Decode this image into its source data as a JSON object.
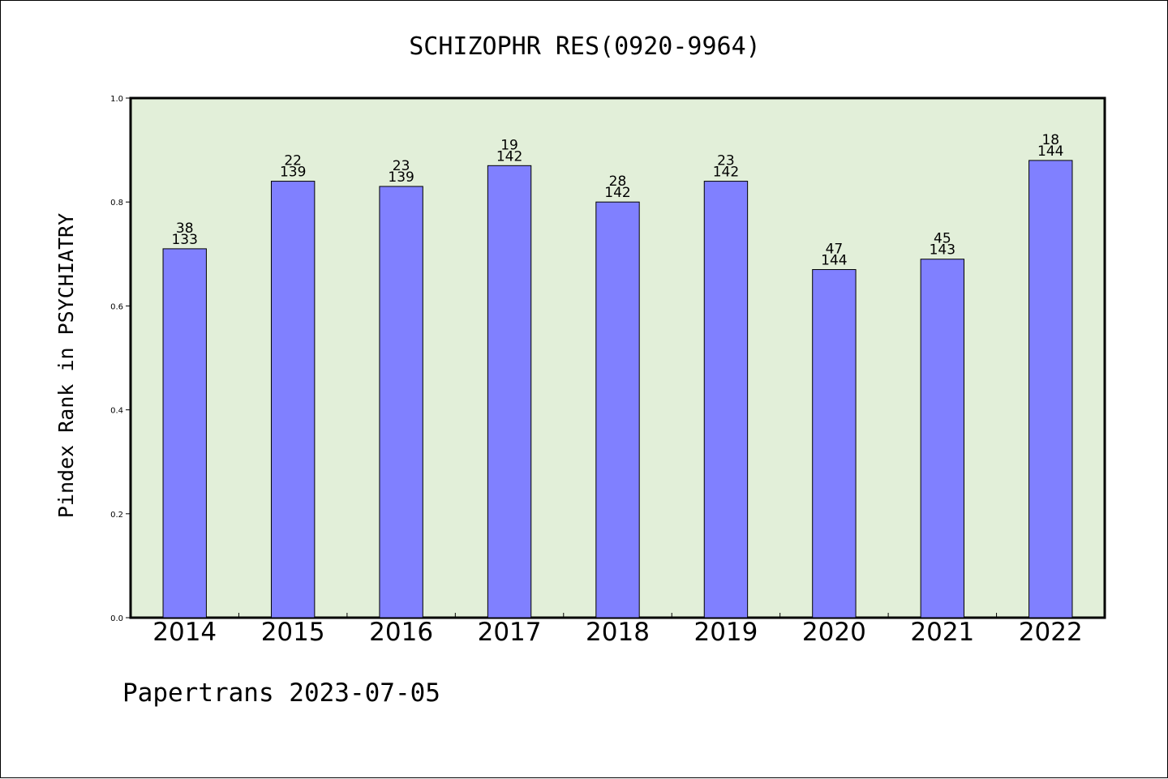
{
  "footer": "Papertrans 2023-07-05",
  "chart_data": {
    "type": "bar",
    "title": "SCHIZOPHR RES(0920-9964)",
    "xlabel": "",
    "ylabel": "Pindex Rank in PSYCHIATRY",
    "ylim": [
      0,
      1.0
    ],
    "yticks": [
      "0.0",
      "0.2",
      "0.4",
      "0.6",
      "0.8",
      "1.0"
    ],
    "categories": [
      "2014",
      "2015",
      "2016",
      "2017",
      "2018",
      "2019",
      "2020",
      "2021",
      "2022"
    ],
    "values": [
      0.71,
      0.84,
      0.83,
      0.87,
      0.8,
      0.84,
      0.67,
      0.69,
      0.88
    ],
    "rank": [
      "38",
      "22",
      "23",
      "19",
      "28",
      "23",
      "47",
      "45",
      "18"
    ],
    "total": [
      "133",
      "139",
      "139",
      "142",
      "142",
      "142",
      "144",
      "143",
      "144"
    ],
    "grid": false,
    "colors": {
      "bar": "#8080ff",
      "plot_background": "#e2efd9",
      "bar_edge": "#000000"
    }
  }
}
